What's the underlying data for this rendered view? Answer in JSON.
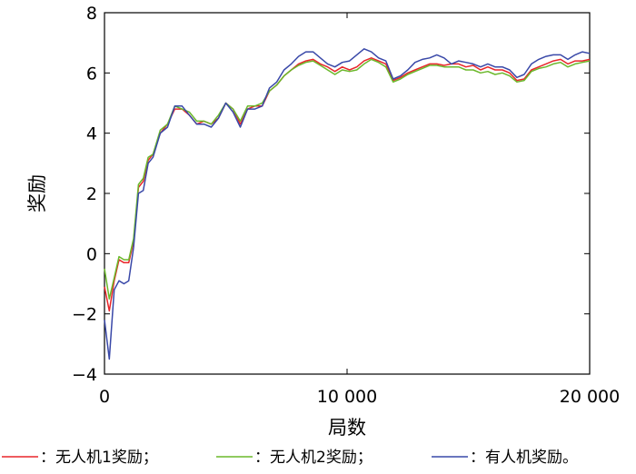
{
  "chart_data": {
    "type": "line",
    "xlabel": "局数",
    "ylabel": "奖励",
    "xlim": [
      0,
      20000
    ],
    "ylim": [
      -4,
      8
    ],
    "xticks": [
      0,
      10000,
      20000
    ],
    "xtick_labels": [
      "0",
      "10 000",
      "20 000"
    ],
    "yticks": [
      -4,
      -2,
      0,
      2,
      4,
      6,
      8
    ],
    "ytick_labels": [
      "−4",
      "−2",
      "0",
      "2",
      "4",
      "6",
      "8"
    ],
    "grid": false,
    "legend_position": "bottom",
    "series": [
      {
        "name": "：无人机1奖励；",
        "color": "#e8262a",
        "x": [
          0,
          200,
          400,
          600,
          800,
          1000,
          1200,
          1400,
          1600,
          1800,
          2000,
          2300,
          2600,
          2900,
          3200,
          3500,
          3800,
          4100,
          4400,
          4700,
          5000,
          5300,
          5600,
          5900,
          6200,
          6500,
          6800,
          7100,
          7400,
          7700,
          8000,
          8300,
          8600,
          8900,
          9200,
          9500,
          9800,
          10100,
          10400,
          10700,
          11000,
          11300,
          11600,
          11900,
          12200,
          12500,
          12800,
          13100,
          13400,
          13700,
          14000,
          14300,
          14600,
          14900,
          15200,
          15500,
          15800,
          16100,
          16400,
          16700,
          17000,
          17300,
          17600,
          17900,
          18200,
          18500,
          18800,
          19100,
          19400,
          19700,
          20000
        ],
        "values": [
          -1.1,
          -1.9,
          -0.9,
          -0.2,
          -0.3,
          -0.3,
          0.4,
          2.2,
          2.4,
          3.1,
          3.3,
          4.0,
          4.3,
          4.8,
          4.8,
          4.6,
          4.3,
          4.4,
          4.3,
          4.5,
          5.0,
          4.8,
          4.3,
          4.8,
          4.9,
          4.9,
          5.4,
          5.6,
          5.9,
          6.1,
          6.3,
          6.4,
          6.45,
          6.3,
          6.2,
          6.05,
          6.2,
          6.1,
          6.2,
          6.4,
          6.5,
          6.4,
          6.3,
          5.75,
          5.85,
          6.0,
          6.1,
          6.2,
          6.3,
          6.3,
          6.25,
          6.3,
          6.3,
          6.2,
          6.25,
          6.1,
          6.2,
          6.1,
          6.1,
          6.0,
          5.75,
          5.8,
          6.1,
          6.2,
          6.3,
          6.4,
          6.45,
          6.3,
          6.4,
          6.4,
          6.45
        ]
      },
      {
        "name": "：无人机2奖励；",
        "color": "#6ab82a",
        "x": [
          0,
          200,
          400,
          600,
          800,
          1000,
          1200,
          1400,
          1600,
          1800,
          2000,
          2300,
          2600,
          2900,
          3200,
          3500,
          3800,
          4100,
          4400,
          4700,
          5000,
          5300,
          5600,
          5900,
          6200,
          6500,
          6800,
          7100,
          7400,
          7700,
          8000,
          8300,
          8600,
          8900,
          9200,
          9500,
          9800,
          10100,
          10400,
          10700,
          11000,
          11300,
          11600,
          11900,
          12200,
          12500,
          12800,
          13100,
          13400,
          13700,
          14000,
          14300,
          14600,
          14900,
          15200,
          15500,
          15800,
          16100,
          16400,
          16700,
          17000,
          17300,
          17600,
          17900,
          18200,
          18500,
          18800,
          19100,
          19400,
          19700,
          20000
        ],
        "values": [
          -0.5,
          -1.5,
          -0.8,
          -0.1,
          -0.2,
          -0.2,
          0.5,
          2.3,
          2.5,
          3.2,
          3.3,
          4.1,
          4.3,
          4.9,
          4.8,
          4.7,
          4.4,
          4.4,
          4.3,
          4.6,
          5.0,
          4.8,
          4.4,
          4.9,
          4.9,
          5.0,
          5.4,
          5.6,
          5.9,
          6.1,
          6.25,
          6.35,
          6.4,
          6.25,
          6.1,
          5.95,
          6.1,
          6.05,
          6.1,
          6.3,
          6.45,
          6.35,
          6.2,
          5.7,
          5.8,
          5.95,
          6.05,
          6.15,
          6.25,
          6.25,
          6.2,
          6.2,
          6.2,
          6.1,
          6.1,
          6.0,
          6.05,
          5.95,
          6.0,
          5.9,
          5.7,
          5.75,
          6.05,
          6.15,
          6.2,
          6.3,
          6.35,
          6.2,
          6.3,
          6.35,
          6.4
        ]
      },
      {
        "name": "：有人机奖励。",
        "color": "#3948a8",
        "x": [
          0,
          200,
          400,
          600,
          800,
          1000,
          1200,
          1400,
          1600,
          1800,
          2000,
          2300,
          2600,
          2900,
          3200,
          3500,
          3800,
          4100,
          4400,
          4700,
          5000,
          5300,
          5600,
          5900,
          6200,
          6500,
          6800,
          7100,
          7400,
          7700,
          8000,
          8300,
          8600,
          8900,
          9200,
          9500,
          9800,
          10100,
          10400,
          10700,
          11000,
          11300,
          11600,
          11900,
          12200,
          12500,
          12800,
          13100,
          13400,
          13700,
          14000,
          14300,
          14600,
          14900,
          15200,
          15500,
          15800,
          16100,
          16400,
          16700,
          17000,
          17300,
          17600,
          17900,
          18200,
          18500,
          18800,
          19100,
          19400,
          19700,
          20000
        ],
        "values": [
          -2.2,
          -3.5,
          -1.2,
          -0.9,
          -1.0,
          -0.9,
          0.2,
          2.0,
          2.1,
          3.0,
          3.2,
          4.0,
          4.2,
          4.9,
          4.9,
          4.6,
          4.3,
          4.3,
          4.2,
          4.5,
          5.0,
          4.7,
          4.2,
          4.8,
          4.8,
          4.9,
          5.5,
          5.7,
          6.1,
          6.3,
          6.55,
          6.7,
          6.7,
          6.5,
          6.3,
          6.2,
          6.35,
          6.4,
          6.6,
          6.8,
          6.7,
          6.5,
          6.4,
          5.8,
          5.9,
          6.1,
          6.35,
          6.45,
          6.5,
          6.6,
          6.5,
          6.3,
          6.4,
          6.35,
          6.3,
          6.2,
          6.3,
          6.2,
          6.2,
          6.1,
          5.85,
          5.95,
          6.3,
          6.45,
          6.55,
          6.6,
          6.6,
          6.45,
          6.6,
          6.7,
          6.65
        ]
      }
    ]
  }
}
